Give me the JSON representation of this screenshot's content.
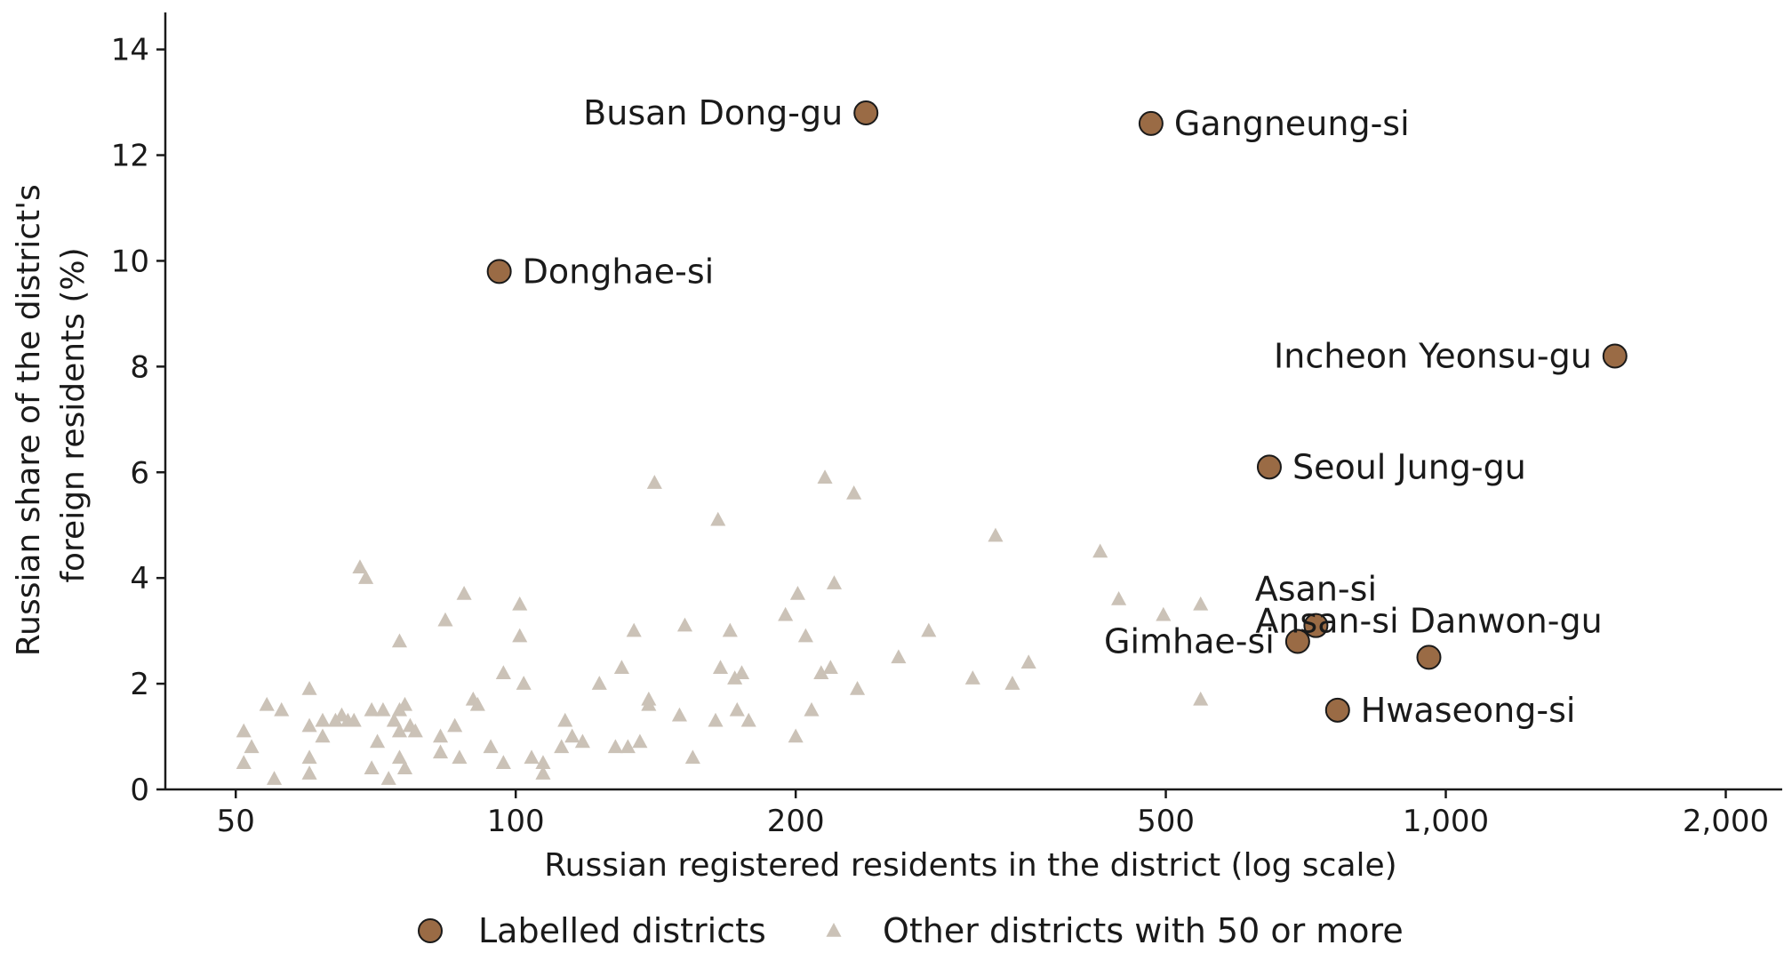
{
  "chart_data": {
    "type": "scatter",
    "title": "",
    "xlabel": "Russian registered residents in the district (log scale)",
    "ylabel_lines": [
      "Russian share of the district's",
      "foreign residents (%)"
    ],
    "x_scale": "log",
    "xlim": [
      42,
      2300
    ],
    "ylim": [
      0,
      14.7
    ],
    "x_ticks": [
      50,
      100,
      200,
      500,
      1000,
      2000
    ],
    "x_tick_labels": [
      "50",
      "100",
      "200",
      "500",
      "1,000",
      "2,000"
    ],
    "y_ticks": [
      0,
      2,
      4,
      6,
      8,
      10,
      12,
      14
    ],
    "y_tick_labels": [
      "0",
      "2",
      "4",
      "6",
      "8",
      "10",
      "12",
      "14"
    ],
    "grid": false,
    "legend_position": "bottom-center",
    "colors": {
      "labelled": "#9a6b45",
      "labelled_stroke": "#1a1a1a",
      "other": "#cbc2b7",
      "axis": "#1a1a1a"
    },
    "series": [
      {
        "name": "Labelled districts",
        "marker": "circle",
        "points": [
          {
            "label": "Busan Dong-gu",
            "x": 238,
            "y": 12.8,
            "anchor": "left"
          },
          {
            "label": "Gangneung-si",
            "x": 482,
            "y": 12.6,
            "anchor": "right"
          },
          {
            "label": "Donghae-si",
            "x": 96,
            "y": 9.8,
            "anchor": "right"
          },
          {
            "label": "Incheon Yeonsu-gu",
            "x": 1520,
            "y": 8.2,
            "anchor": "left"
          },
          {
            "label": "Seoul Jung-gu",
            "x": 646,
            "y": 6.1,
            "anchor": "right"
          },
          {
            "label": "Asan-si",
            "x": 725,
            "y": 3.1,
            "anchor": "above"
          },
          {
            "label": "Gimhae-si",
            "x": 693,
            "y": 2.8,
            "anchor": "left"
          },
          {
            "label": "Ansan-si Danwon-gu",
            "x": 959,
            "y": 2.5,
            "anchor": "above"
          },
          {
            "label": "Hwaseong-si",
            "x": 765,
            "y": 1.5,
            "anchor": "right"
          }
        ]
      },
      {
        "name": "Other districts with 50 or more",
        "marker": "triangle",
        "points": [
          {
            "x": 51,
            "y": 1.1
          },
          {
            "x": 51,
            "y": 0.5
          },
          {
            "x": 52,
            "y": 0.8
          },
          {
            "x": 54,
            "y": 1.6
          },
          {
            "x": 55,
            "y": 0.2
          },
          {
            "x": 56,
            "y": 1.5
          },
          {
            "x": 60,
            "y": 1.9
          },
          {
            "x": 60,
            "y": 1.2
          },
          {
            "x": 60,
            "y": 0.6
          },
          {
            "x": 60,
            "y": 0.3
          },
          {
            "x": 62,
            "y": 1.0
          },
          {
            "x": 62,
            "y": 1.3
          },
          {
            "x": 64,
            "y": 1.3
          },
          {
            "x": 65,
            "y": 1.4
          },
          {
            "x": 66,
            "y": 1.3
          },
          {
            "x": 67,
            "y": 1.3
          },
          {
            "x": 68,
            "y": 4.2
          },
          {
            "x": 69,
            "y": 4.0
          },
          {
            "x": 70,
            "y": 1.5
          },
          {
            "x": 70,
            "y": 0.4
          },
          {
            "x": 71,
            "y": 0.9
          },
          {
            "x": 72,
            "y": 1.5
          },
          {
            "x": 73,
            "y": 0.2
          },
          {
            "x": 74,
            "y": 1.3
          },
          {
            "x": 75,
            "y": 1.1
          },
          {
            "x": 75,
            "y": 1.5
          },
          {
            "x": 75,
            "y": 2.8
          },
          {
            "x": 75,
            "y": 0.6
          },
          {
            "x": 76,
            "y": 1.6
          },
          {
            "x": 76,
            "y": 0.4
          },
          {
            "x": 77,
            "y": 1.2
          },
          {
            "x": 78,
            "y": 1.1
          },
          {
            "x": 83,
            "y": 1.0
          },
          {
            "x": 83,
            "y": 0.7
          },
          {
            "x": 84,
            "y": 3.2
          },
          {
            "x": 86,
            "y": 1.2
          },
          {
            "x": 87,
            "y": 0.6
          },
          {
            "x": 88,
            "y": 3.7
          },
          {
            "x": 90,
            "y": 1.7
          },
          {
            "x": 91,
            "y": 1.6
          },
          {
            "x": 94,
            "y": 0.8
          },
          {
            "x": 97,
            "y": 2.2
          },
          {
            "x": 97,
            "y": 0.5
          },
          {
            "x": 101,
            "y": 3.5
          },
          {
            "x": 101,
            "y": 2.9
          },
          {
            "x": 102,
            "y": 2.0
          },
          {
            "x": 104,
            "y": 0.6
          },
          {
            "x": 107,
            "y": 0.5
          },
          {
            "x": 107,
            "y": 0.3
          },
          {
            "x": 112,
            "y": 0.8
          },
          {
            "x": 113,
            "y": 1.3
          },
          {
            "x": 115,
            "y": 1.0
          },
          {
            "x": 118,
            "y": 0.9
          },
          {
            "x": 123,
            "y": 2.0
          },
          {
            "x": 128,
            "y": 0.8
          },
          {
            "x": 130,
            "y": 2.3
          },
          {
            "x": 132,
            "y": 0.8
          },
          {
            "x": 134,
            "y": 3.0
          },
          {
            "x": 136,
            "y": 0.9
          },
          {
            "x": 139,
            "y": 1.7
          },
          {
            "x": 139,
            "y": 1.6
          },
          {
            "x": 141,
            "y": 5.8
          },
          {
            "x": 150,
            "y": 1.4
          },
          {
            "x": 152,
            "y": 3.1
          },
          {
            "x": 155,
            "y": 0.6
          },
          {
            "x": 164,
            "y": 1.3
          },
          {
            "x": 165,
            "y": 5.1
          },
          {
            "x": 166,
            "y": 2.3
          },
          {
            "x": 170,
            "y": 3.0
          },
          {
            "x": 172,
            "y": 2.1
          },
          {
            "x": 173,
            "y": 1.5
          },
          {
            "x": 175,
            "y": 2.2
          },
          {
            "x": 178,
            "y": 1.3
          },
          {
            "x": 195,
            "y": 3.3
          },
          {
            "x": 200,
            "y": 1.0
          },
          {
            "x": 201,
            "y": 3.7
          },
          {
            "x": 205,
            "y": 2.9
          },
          {
            "x": 208,
            "y": 1.5
          },
          {
            "x": 213,
            "y": 2.2
          },
          {
            "x": 215,
            "y": 5.9
          },
          {
            "x": 218,
            "y": 2.3
          },
          {
            "x": 220,
            "y": 3.9
          },
          {
            "x": 231,
            "y": 5.6
          },
          {
            "x": 233,
            "y": 1.9
          },
          {
            "x": 258,
            "y": 2.5
          },
          {
            "x": 278,
            "y": 3.0
          },
          {
            "x": 310,
            "y": 2.1
          },
          {
            "x": 328,
            "y": 4.8
          },
          {
            "x": 342,
            "y": 2.0
          },
          {
            "x": 356,
            "y": 2.4
          },
          {
            "x": 425,
            "y": 4.5
          },
          {
            "x": 445,
            "y": 3.6
          },
          {
            "x": 497,
            "y": 3.3
          },
          {
            "x": 545,
            "y": 3.5
          },
          {
            "x": 545,
            "y": 1.7
          }
        ]
      }
    ]
  }
}
